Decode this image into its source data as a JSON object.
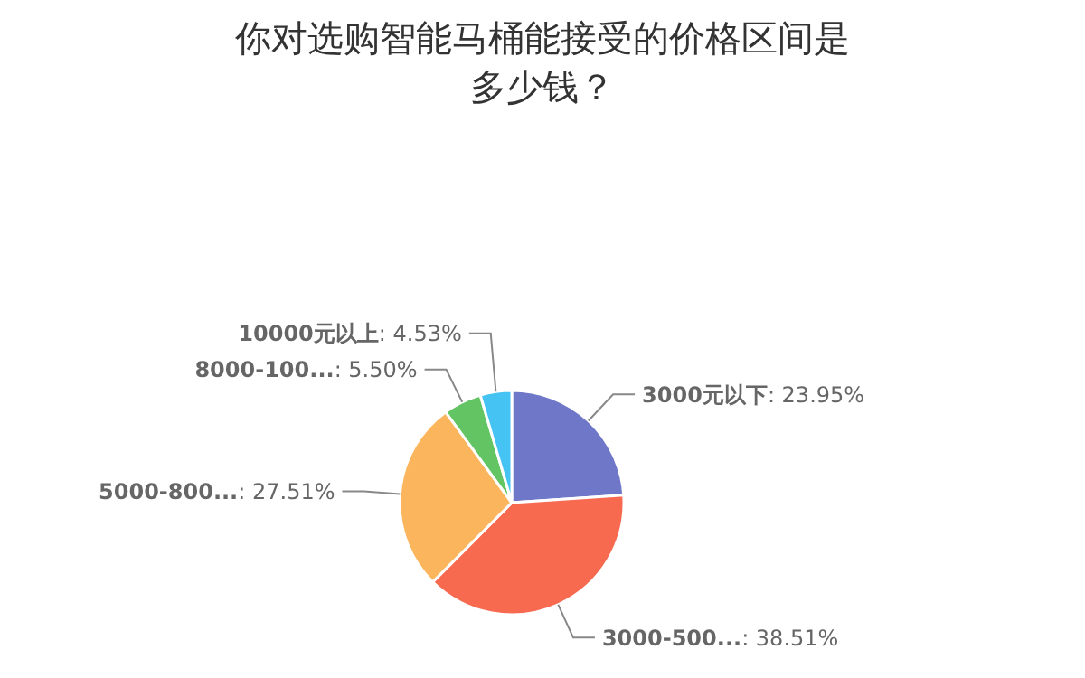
{
  "chart_data": {
    "type": "pie",
    "title": "你对选购智能马桶能接受的价格区间是多少钱？",
    "categories": [
      "3000元以下",
      "3000-500...",
      "5000-800...",
      "8000-100...",
      "10000元以上"
    ],
    "values": [
      23.95,
      38.51,
      27.51,
      5.5,
      4.53
    ],
    "value_labels": [
      ": 23.95%",
      ": 38.51%",
      ": 27.51%",
      ": 5.50%",
      ": 4.53%"
    ],
    "colors": [
      "#6f77c9",
      "#f76a50",
      "#fbb55c",
      "#62c462",
      "#45c3f2"
    ]
  }
}
